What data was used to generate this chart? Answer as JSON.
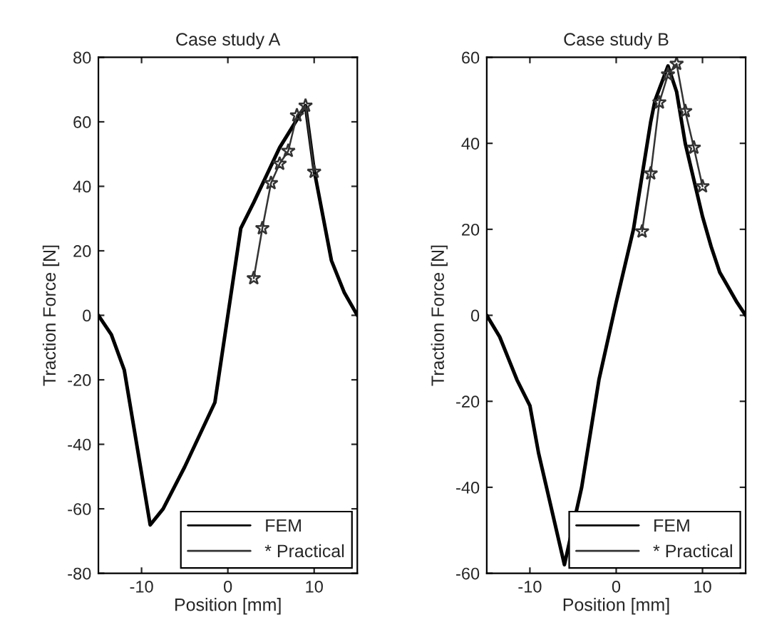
{
  "chart_data": [
    {
      "type": "line",
      "title": "Case study A",
      "xlabel": "Position [mm]",
      "ylabel": "Traction Force [N]",
      "xlim": [
        -15,
        15
      ],
      "xticks": [
        -10,
        0,
        10
      ],
      "ylim": [
        -80,
        80
      ],
      "yticks": [
        -80,
        -60,
        -40,
        -20,
        0,
        20,
        40,
        60,
        80
      ],
      "grid": false,
      "legend": "bottom right",
      "series": [
        {
          "name": "FEM",
          "color": "#000000",
          "marker": "none",
          "x": [
            -15,
            -13.5,
            -12,
            -9,
            -7.5,
            -5,
            -1.5,
            1.5,
            3,
            6,
            9,
            10,
            12,
            13.5,
            15
          ],
          "values": [
            0,
            -6,
            -17,
            -65,
            -60,
            -47,
            -27,
            27,
            35,
            52,
            65,
            45,
            17,
            7,
            0
          ]
        },
        {
          "name": "* Practical",
          "color": "#333333",
          "marker": "star",
          "x": [
            3,
            4,
            5,
            6,
            7,
            8,
            9,
            10
          ],
          "values": [
            11.5,
            27,
            41,
            47,
            51,
            62,
            65,
            44.5
          ]
        }
      ]
    },
    {
      "type": "line",
      "title": "Case study B",
      "xlabel": "Position [mm]",
      "ylabel": "Traction Force [N]",
      "xlim": [
        -15,
        15
      ],
      "xticks": [
        -10,
        0,
        10
      ],
      "ylim": [
        -60,
        60
      ],
      "yticks": [
        -60,
        -40,
        -20,
        0,
        20,
        40,
        60
      ],
      "grid": false,
      "legend": "bottom right",
      "series": [
        {
          "name": "FEM",
          "color": "#000000",
          "marker": "none",
          "x": [
            -15,
            -13.5,
            -11.5,
            -10,
            -9,
            -6,
            -4,
            -2,
            0,
            2,
            4,
            4.5,
            6,
            7,
            8,
            10,
            11,
            12,
            14,
            15
          ],
          "values": [
            0,
            -5,
            -15,
            -21,
            -32,
            -58,
            -40,
            -15,
            3,
            20,
            45,
            50,
            58,
            52,
            40,
            23,
            16,
            10,
            3,
            0
          ]
        },
        {
          "name": "* Practical",
          "color": "#333333",
          "marker": "star",
          "x": [
            3,
            4,
            5,
            6,
            7,
            8,
            9,
            10
          ],
          "values": [
            19.5,
            33,
            49.5,
            56,
            58.5,
            47.5,
            39,
            30
          ]
        }
      ]
    }
  ]
}
